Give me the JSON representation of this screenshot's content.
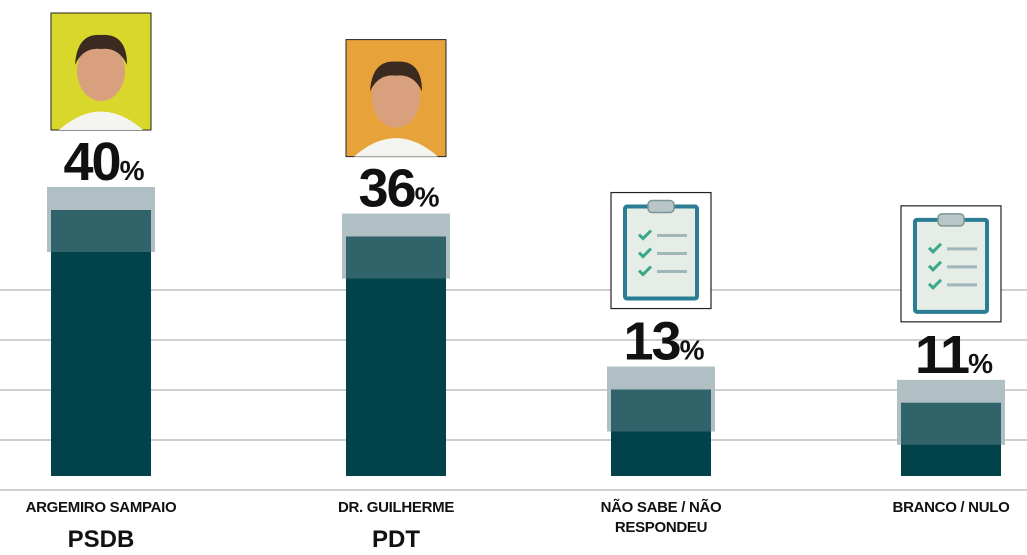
{
  "chart_data": {
    "type": "bar",
    "categories": [
      "ARGEMIRO SAMPAIO",
      "DR. GUILHERME",
      "NÃO SABE / NÃO RESPONDEU",
      "BRANCO / NULO"
    ],
    "parties": [
      "PSDB",
      "PDT",
      null,
      null
    ],
    "values": [
      40,
      36,
      13,
      11
    ],
    "value_labels": [
      "40%",
      "36%",
      "13%",
      "11%"
    ],
    "color": "#02434b"
  }
}
